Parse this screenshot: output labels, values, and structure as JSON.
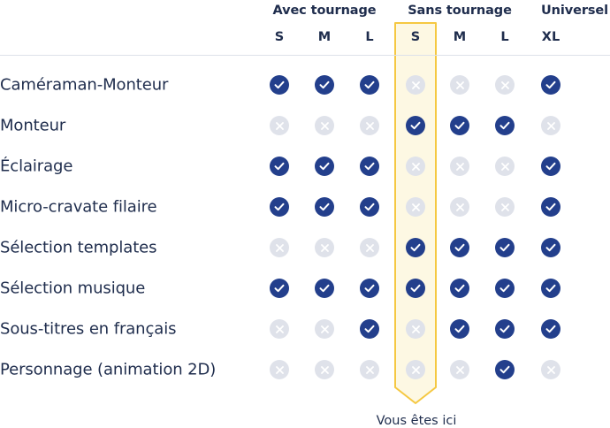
{
  "groups": [
    {
      "label": "Avec tournage"
    },
    {
      "label": "Sans tournage"
    },
    {
      "label": "Universel"
    }
  ],
  "sizes": [
    "S",
    "M",
    "L",
    "S",
    "M",
    "L",
    "XL"
  ],
  "highlight_column": 3,
  "highlight_note": "Vous êtes ici",
  "colors": {
    "check": "#233f8c",
    "cross": "#dfe2ea",
    "highlight_border": "#f5c842",
    "highlight_fill": "#fdf8e3"
  },
  "rows": [
    {
      "label": "Caméraman-Monteur",
      "values": [
        1,
        1,
        1,
        0,
        0,
        0,
        1
      ]
    },
    {
      "label": "Monteur",
      "values": [
        0,
        0,
        0,
        1,
        1,
        1,
        0
      ]
    },
    {
      "label": "Éclairage",
      "values": [
        1,
        1,
        1,
        0,
        0,
        0,
        1
      ]
    },
    {
      "label": "Micro-cravate filaire",
      "values": [
        1,
        1,
        1,
        0,
        0,
        0,
        1
      ]
    },
    {
      "label": "Sélection templates",
      "values": [
        0,
        0,
        0,
        1,
        1,
        1,
        1
      ]
    },
    {
      "label": "Sélection musique",
      "values": [
        1,
        1,
        1,
        1,
        1,
        1,
        1
      ]
    },
    {
      "label": "Sous-titres en français",
      "values": [
        0,
        0,
        1,
        0,
        1,
        1,
        1
      ]
    },
    {
      "label": "Personnage (animation 2D)",
      "values": [
        0,
        0,
        0,
        0,
        0,
        1,
        0
      ]
    }
  ]
}
